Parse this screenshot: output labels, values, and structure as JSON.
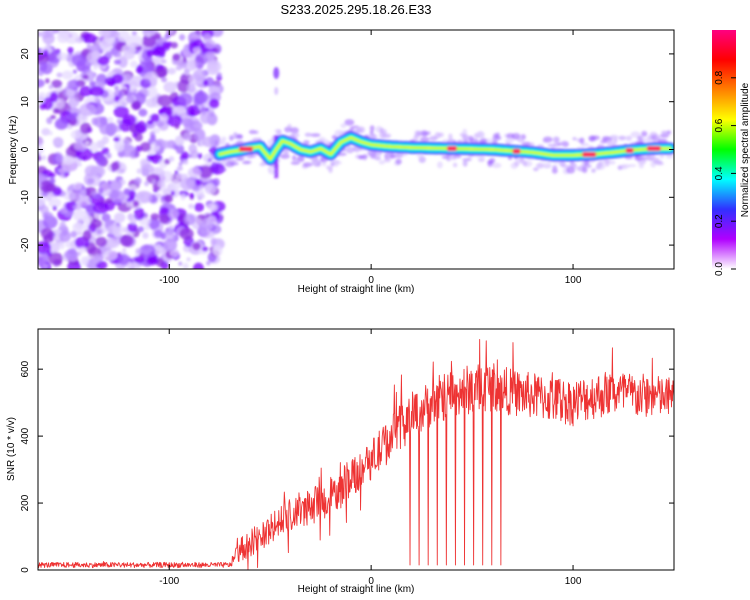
{
  "title": "S233.2025.295.18.26.E33",
  "chart_data": [
    {
      "type": "heatmap",
      "name": "spectrogram",
      "xlabel": "Height of straight line (km)",
      "ylabel": "Frequency (Hz)",
      "xlim": [
        -165,
        150
      ],
      "ylim": [
        -25,
        25
      ],
      "x_ticks": [
        -100,
        0,
        100
      ],
      "y_ticks": [
        -20,
        -10,
        0,
        10,
        20
      ],
      "noise_region_x": [
        -165,
        -75
      ],
      "isolated_blob": {
        "x": -47,
        "y": 16
      },
      "ridge": {
        "x": [
          -75,
          -70,
          -65,
          -60,
          -55,
          -50,
          -47,
          -44,
          -40,
          -35,
          -30,
          -25,
          -20,
          -15,
          -10,
          -5,
          0,
          10,
          20,
          30,
          40,
          50,
          60,
          70,
          80,
          90,
          100,
          110,
          120,
          130,
          140,
          148
        ],
        "y": [
          -1,
          -0.5,
          -0.2,
          0.3,
          0.6,
          -2,
          0,
          1.8,
          1.2,
          0,
          -0.5,
          0.2,
          -1,
          1.5,
          2.5,
          1.6,
          1,
          0.6,
          0.4,
          0.3,
          0.2,
          0.1,
          0,
          -0.3,
          -0.6,
          -1.2,
          -1.2,
          -1,
          -0.6,
          -0.1,
          0.2,
          0.2
        ]
      },
      "colorbar": {
        "label": "Normalized spectral amplitude",
        "ticks": [
          "0.0",
          "0.2",
          "0.4",
          "0.6",
          "0.8"
        ],
        "range": [
          0,
          1
        ],
        "colors": [
          "#ffffff",
          "#b000ff",
          "#3030ff",
          "#00ffff",
          "#00ff00",
          "#ffff00",
          "#ff8000",
          "#ff0000",
          "#ff0080"
        ]
      }
    },
    {
      "type": "line",
      "name": "snr",
      "xlabel": "Height of straight line (km)",
      "ylabel": "SNR (10 * v/v)",
      "xlim": [
        -165,
        150
      ],
      "ylim": [
        0,
        720
      ],
      "x_ticks": [
        -100,
        0,
        100
      ],
      "y_ticks": [
        0,
        200,
        400,
        600
      ],
      "color": "#ee3333",
      "envelope": {
        "x": [
          -165,
          -130,
          -100,
          -70,
          -65,
          -55,
          -45,
          -35,
          -25,
          -15,
          -10,
          -5,
          0,
          5,
          10,
          15,
          20,
          30,
          40,
          50,
          60,
          70,
          80,
          90,
          100,
          110,
          120,
          130,
          140,
          150
        ],
        "mean": [
          15,
          15,
          15,
          15,
          60,
          100,
          140,
          180,
          200,
          240,
          280,
          300,
          330,
          360,
          400,
          430,
          460,
          500,
          530,
          540,
          550,
          530,
          520,
          510,
          500,
          520,
          530,
          520,
          520,
          510
        ],
        "spread": [
          8,
          8,
          8,
          8,
          35,
          45,
          50,
          55,
          55,
          60,
          60,
          60,
          60,
          65,
          70,
          70,
          70,
          70,
          75,
          75,
          75,
          70,
          70,
          70,
          70,
          70,
          70,
          70,
          65,
          60
        ]
      },
      "dropout_range_x": [
        15,
        65
      ],
      "dropout_level": 15
    }
  ]
}
